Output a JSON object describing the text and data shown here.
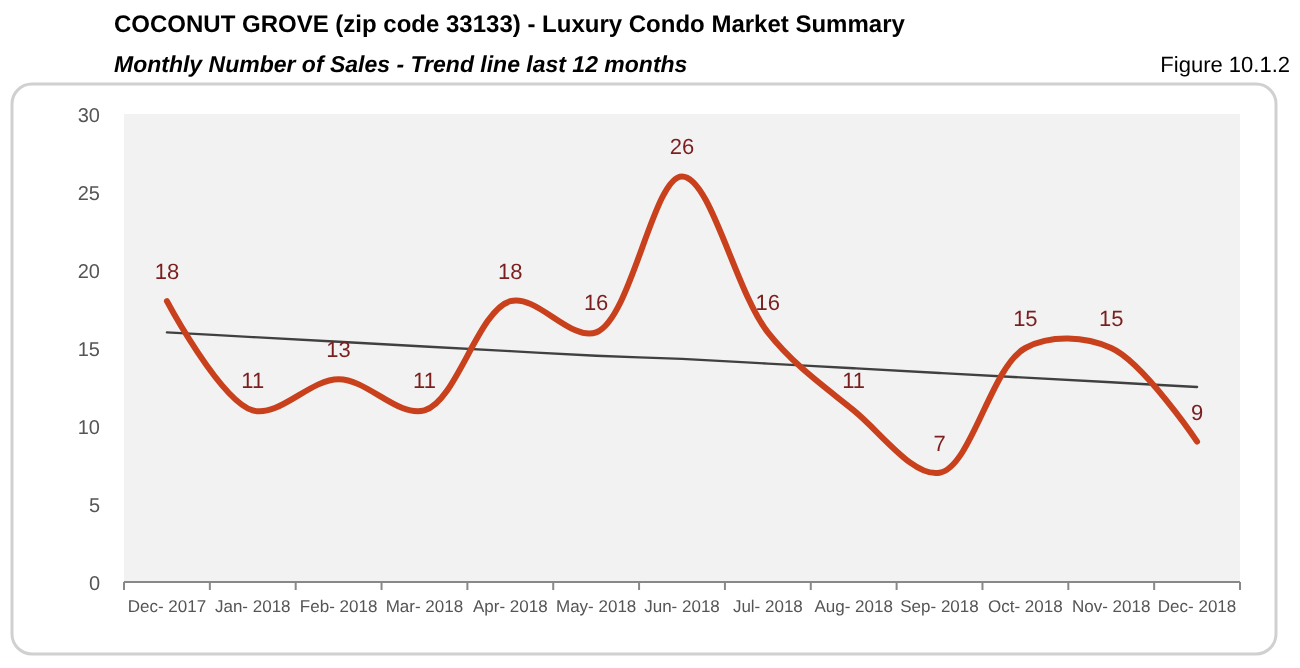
{
  "chart_data": {
    "type": "line",
    "title": "COCONUT GROVE (zip code 33133) - Luxury Condo Market Summary",
    "subtitle": "Monthly Number of Sales - Trend line last 12 months",
    "annotations": [
      "Figure 10.1.2"
    ],
    "categories": [
      "Dec- 2017",
      "Jan- 2018",
      "Feb- 2018",
      "Mar- 2018",
      "Apr- 2018",
      "May- 2018",
      "Jun- 2018",
      "Jul- 2018",
      "Aug- 2018",
      "Sep- 2018",
      "Oct- 2018",
      "Nov- 2018",
      "Dec- 2018"
    ],
    "series": [
      {
        "color": "#c8401c",
        "values": [
          18,
          11,
          13,
          11,
          18,
          16,
          26,
          16,
          11,
          7,
          15,
          15,
          9
        ],
        "data_labels": true
      },
      {
        "color": "#404040",
        "values": [
          16.0,
          15.7,
          15.4,
          15.1,
          14.8,
          14.5,
          14.3,
          14.0,
          13.7,
          13.4,
          13.1,
          12.8,
          12.5
        ]
      }
    ],
    "ylim": [
      0,
      30
    ],
    "yticks": [
      0,
      5,
      10,
      15,
      20,
      25,
      30
    ],
    "marker": "none"
  }
}
